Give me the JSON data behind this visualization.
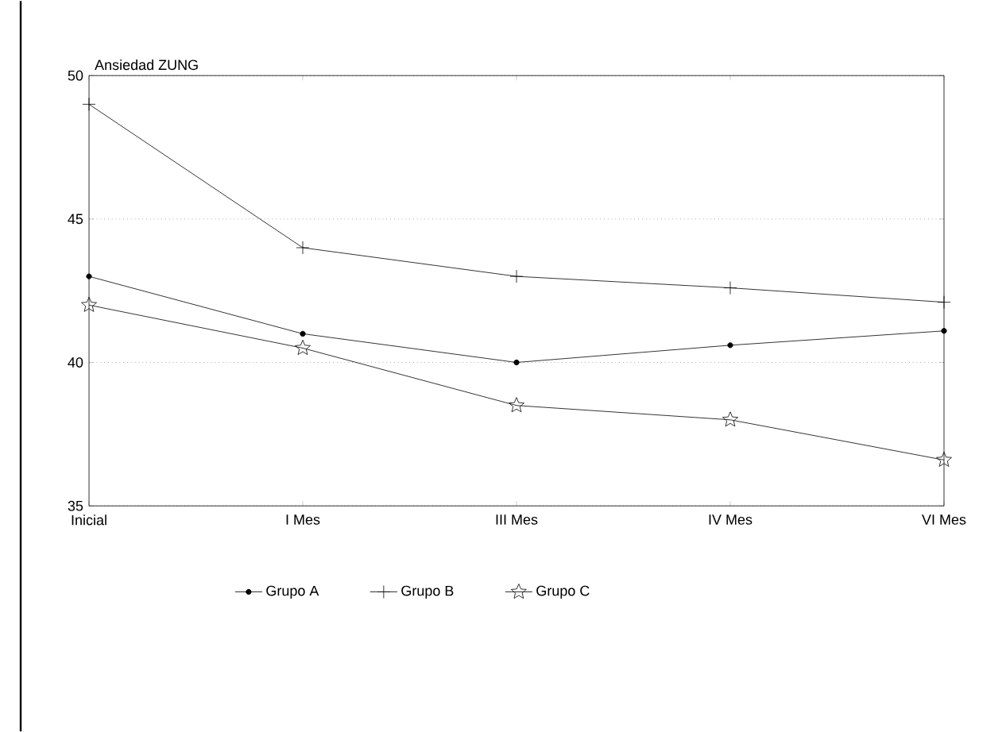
{
  "chart_data": {
    "type": "line",
    "ylabel": "Ansiedad ZUNG",
    "categories": [
      "Inicial",
      "I Mes",
      "III Mes",
      "IV Mes",
      "VI Mes"
    ],
    "series": [
      {
        "name": "Grupo A",
        "color": "#000000",
        "marker": "circle",
        "values": [
          43.0,
          41.0,
          40.0,
          40.6,
          41.1
        ]
      },
      {
        "name": "Grupo B",
        "color": "#000000",
        "marker": "cross",
        "values": [
          49.0,
          44.0,
          43.0,
          42.6,
          42.1
        ]
      },
      {
        "name": "Grupo C",
        "color": "#000000",
        "marker": "star",
        "values": [
          42.0,
          40.5,
          38.5,
          38.0,
          36.6
        ]
      }
    ],
    "ylim": [
      35,
      50
    ],
    "yticks": [
      35,
      40,
      45,
      50
    ],
    "grid": "y",
    "legend": "bottom",
    "line_style": "solid"
  }
}
